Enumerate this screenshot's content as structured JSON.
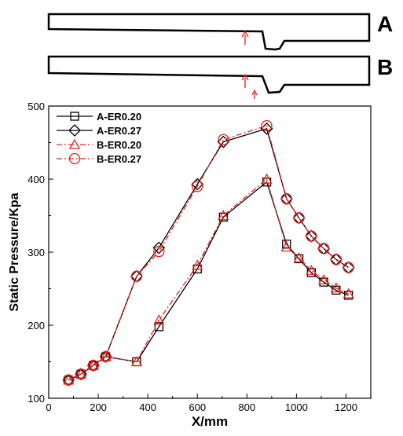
{
  "geometry_labels": {
    "a": "A",
    "b": "B"
  },
  "chart_data": {
    "type": "line",
    "title": "",
    "xlabel": "X/mm",
    "ylabel": "Static Pressure/Kpa",
    "xlim": [
      0,
      1300
    ],
    "ylim": [
      100,
      500
    ],
    "xticks": [
      0,
      200,
      400,
      600,
      800,
      1000,
      1200
    ],
    "yticks": [
      100,
      200,
      300,
      400,
      500
    ],
    "grid": false,
    "legend_position": "top-left",
    "series": [
      {
        "name": "A-ER0.20",
        "color": "#000000",
        "dash": "solid",
        "marker": "square",
        "x": [
          80,
          130,
          180,
          230,
          355,
          445,
          600,
          705,
          880,
          960,
          1010,
          1060,
          1110,
          1160,
          1210
        ],
        "y": [
          125,
          133,
          145,
          157,
          150,
          198,
          277,
          348,
          396,
          311,
          291,
          272,
          259,
          248,
          241
        ]
      },
      {
        "name": "A-ER0.27",
        "color": "#000000",
        "dash": "solid",
        "marker": "diamond",
        "x": [
          80,
          130,
          180,
          230,
          355,
          445,
          600,
          705,
          880,
          960,
          1010,
          1060,
          1110,
          1160,
          1210
        ],
        "y": [
          125,
          133,
          145,
          157,
          267,
          306,
          393,
          451,
          469,
          373,
          347,
          322,
          305,
          290,
          279
        ]
      },
      {
        "name": "B-ER0.20",
        "color": "#e8201a",
        "dash": "dashdot",
        "marker": "triangle",
        "x": [
          80,
          130,
          180,
          230,
          355,
          445,
          600,
          705,
          880,
          960,
          1010,
          1060,
          1110,
          1160,
          1210
        ],
        "y": [
          125,
          133,
          145,
          157,
          150,
          207,
          282,
          350,
          400,
          307,
          292,
          275,
          262,
          251,
          243
        ]
      },
      {
        "name": "B-ER0.27",
        "color": "#e8201a",
        "dash": "dashdot",
        "marker": "circle",
        "x": [
          80,
          130,
          180,
          230,
          355,
          445,
          600,
          705,
          880,
          960,
          1010,
          1060,
          1110,
          1160,
          1210
        ],
        "y": [
          125,
          133,
          145,
          157,
          267,
          301,
          390,
          454,
          473,
          373,
          347,
          322,
          305,
          290,
          279
        ]
      }
    ]
  }
}
